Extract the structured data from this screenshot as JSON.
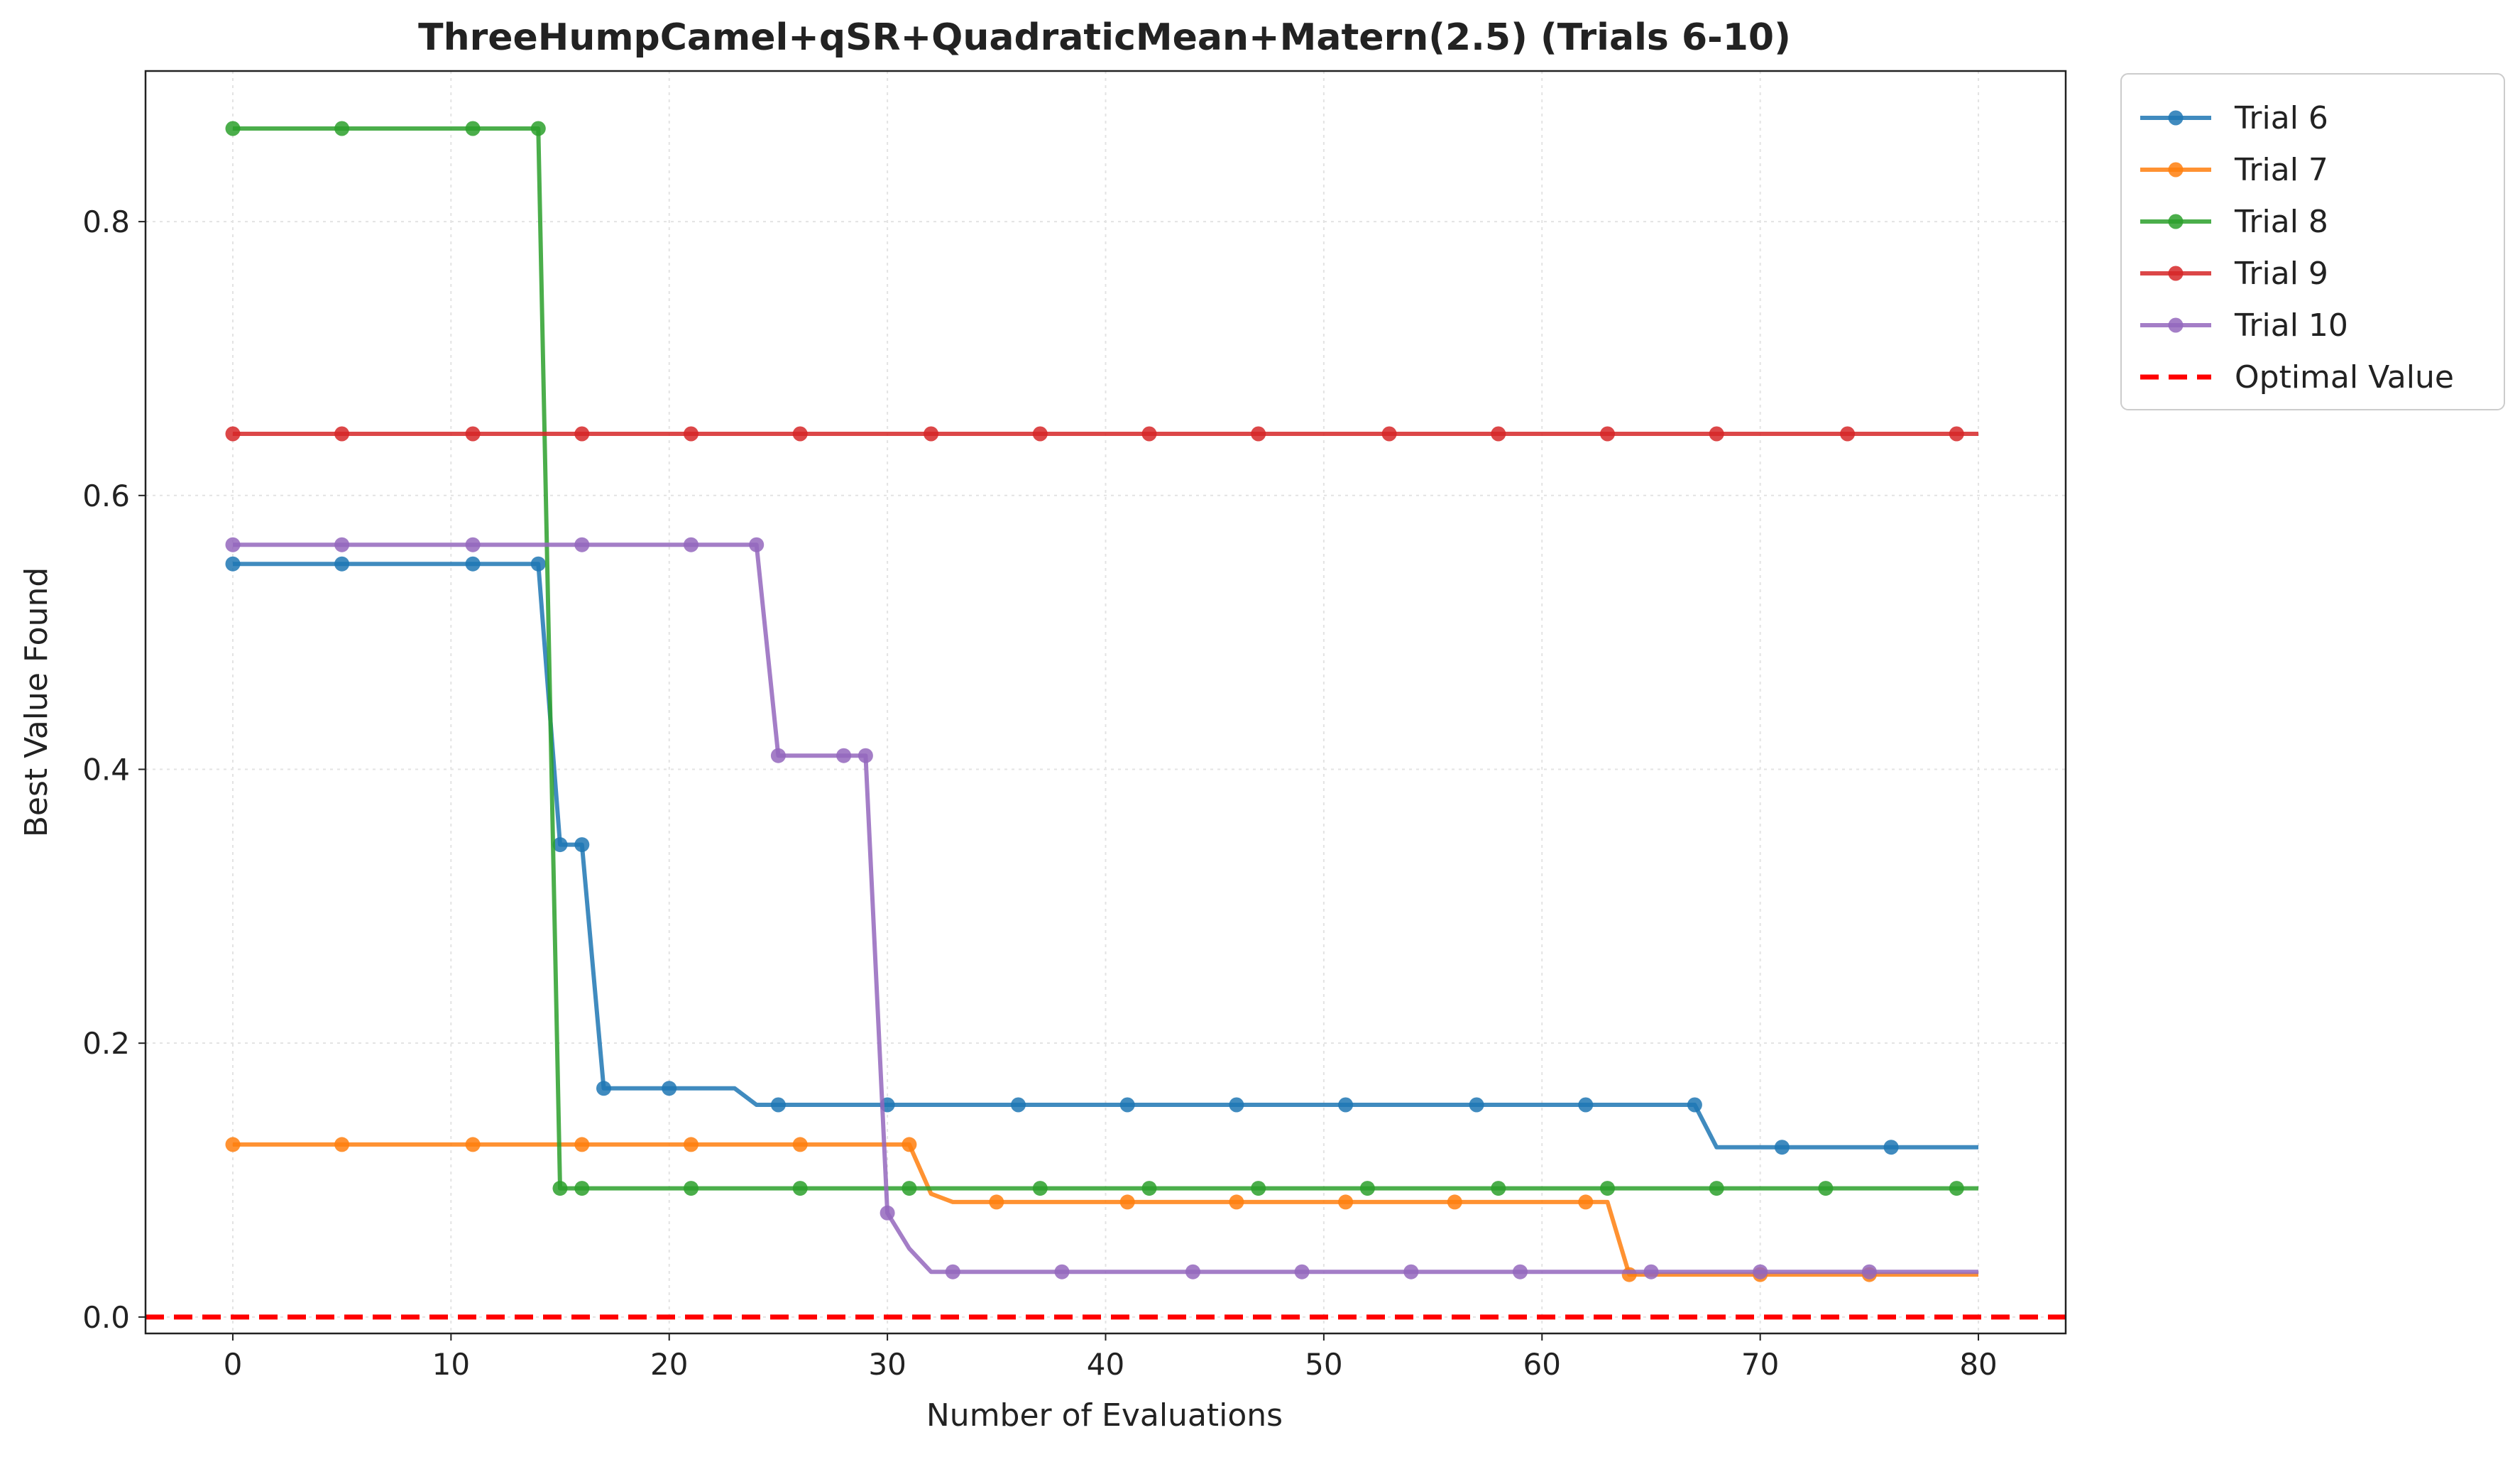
{
  "chart_data": {
    "type": "line",
    "title": "ThreeHumpCamel+qSR+QuadraticMean+Matern(2.5) (Trials 6-10)",
    "xlabel": "Number of Evaluations",
    "ylabel": "Best Value Found",
    "xlim": [
      -4,
      84
    ],
    "ylim": [
      -0.012,
      0.91
    ],
    "xticks": [
      0,
      10,
      20,
      30,
      40,
      50,
      60,
      70,
      80
    ],
    "yticks": [
      0.0,
      0.2,
      0.4,
      0.6,
      0.8
    ],
    "xtick_labels": [
      "0",
      "10",
      "20",
      "30",
      "40",
      "50",
      "60",
      "70",
      "80"
    ],
    "ytick_labels": [
      "0.0",
      "0.2",
      "0.4",
      "0.6",
      "0.8"
    ],
    "grid": true,
    "legend_position": "outside-top-right",
    "series": [
      {
        "name": "Trial 6",
        "color": "#1f77b4",
        "line": [
          [
            0,
            0.55
          ],
          [
            14,
            0.55
          ],
          [
            15,
            0.345
          ],
          [
            16,
            0.345
          ],
          [
            17,
            0.167
          ],
          [
            23,
            0.167
          ],
          [
            24,
            0.155
          ],
          [
            67,
            0.155
          ],
          [
            68,
            0.124
          ],
          [
            80,
            0.124
          ]
        ],
        "markers": [
          [
            0,
            0.55
          ],
          [
            5,
            0.55
          ],
          [
            11,
            0.55
          ],
          [
            14,
            0.55
          ],
          [
            15,
            0.345
          ],
          [
            16,
            0.345
          ],
          [
            17,
            0.167
          ],
          [
            20,
            0.167
          ],
          [
            25,
            0.155
          ],
          [
            30,
            0.155
          ],
          [
            36,
            0.155
          ],
          [
            41,
            0.155
          ],
          [
            46,
            0.155
          ],
          [
            51,
            0.155
          ],
          [
            57,
            0.155
          ],
          [
            62,
            0.155
          ],
          [
            67,
            0.155
          ],
          [
            71,
            0.124
          ],
          [
            76,
            0.124
          ]
        ]
      },
      {
        "name": "Trial 7",
        "color": "#ff7f0e",
        "line": [
          [
            0,
            0.126
          ],
          [
            31,
            0.126
          ],
          [
            32,
            0.09
          ],
          [
            33,
            0.084
          ],
          [
            63,
            0.084
          ],
          [
            64,
            0.031
          ],
          [
            80,
            0.031
          ]
        ],
        "markers": [
          [
            0,
            0.126
          ],
          [
            5,
            0.126
          ],
          [
            11,
            0.126
          ],
          [
            16,
            0.126
          ],
          [
            21,
            0.126
          ],
          [
            26,
            0.126
          ],
          [
            31,
            0.126
          ],
          [
            35,
            0.084
          ],
          [
            41,
            0.084
          ],
          [
            46,
            0.084
          ],
          [
            51,
            0.084
          ],
          [
            56,
            0.084
          ],
          [
            62,
            0.084
          ],
          [
            64,
            0.031
          ],
          [
            70,
            0.031
          ],
          [
            75,
            0.031
          ]
        ]
      },
      {
        "name": "Trial 8",
        "color": "#2ca02c",
        "line": [
          [
            0,
            0.868
          ],
          [
            14,
            0.868
          ],
          [
            15,
            0.094
          ],
          [
            80,
            0.094
          ]
        ],
        "markers": [
          [
            0,
            0.868
          ],
          [
            5,
            0.868
          ],
          [
            11,
            0.868
          ],
          [
            14,
            0.868
          ],
          [
            15,
            0.094
          ],
          [
            16,
            0.094
          ],
          [
            21,
            0.094
          ],
          [
            26,
            0.094
          ],
          [
            31,
            0.094
          ],
          [
            37,
            0.094
          ],
          [
            42,
            0.094
          ],
          [
            47,
            0.094
          ],
          [
            52,
            0.094
          ],
          [
            58,
            0.094
          ],
          [
            63,
            0.094
          ],
          [
            68,
            0.094
          ],
          [
            73,
            0.094
          ],
          [
            79,
            0.094
          ]
        ]
      },
      {
        "name": "Trial 9",
        "color": "#d62728",
        "line": [
          [
            0,
            0.645
          ],
          [
            80,
            0.645
          ]
        ],
        "markers": [
          [
            0,
            0.645
          ],
          [
            5,
            0.645
          ],
          [
            11,
            0.645
          ],
          [
            16,
            0.645
          ],
          [
            21,
            0.645
          ],
          [
            26,
            0.645
          ],
          [
            32,
            0.645
          ],
          [
            37,
            0.645
          ],
          [
            42,
            0.645
          ],
          [
            47,
            0.645
          ],
          [
            53,
            0.645
          ],
          [
            58,
            0.645
          ],
          [
            63,
            0.645
          ],
          [
            68,
            0.645
          ],
          [
            74,
            0.645
          ],
          [
            79,
            0.645
          ]
        ]
      },
      {
        "name": "Trial 10",
        "color": "#9467bd",
        "line": [
          [
            0,
            0.564
          ],
          [
            24,
            0.564
          ],
          [
            25,
            0.41
          ],
          [
            29,
            0.41
          ],
          [
            30,
            0.076
          ],
          [
            31,
            0.05
          ],
          [
            32,
            0.033
          ],
          [
            80,
            0.033
          ]
        ],
        "markers": [
          [
            0,
            0.564
          ],
          [
            5,
            0.564
          ],
          [
            11,
            0.564
          ],
          [
            16,
            0.564
          ],
          [
            21,
            0.564
          ],
          [
            24,
            0.564
          ],
          [
            25,
            0.41
          ],
          [
            28,
            0.41
          ],
          [
            29,
            0.41
          ],
          [
            30,
            0.076
          ],
          [
            33,
            0.033
          ],
          [
            38,
            0.033
          ],
          [
            44,
            0.033
          ],
          [
            49,
            0.033
          ],
          [
            54,
            0.033
          ],
          [
            59,
            0.033
          ],
          [
            65,
            0.033
          ],
          [
            70,
            0.033
          ],
          [
            75,
            0.033
          ]
        ]
      }
    ],
    "reference_line": {
      "name": "Optimal Value",
      "y": 0.0,
      "color": "#ff0000",
      "style": "dashed"
    }
  }
}
